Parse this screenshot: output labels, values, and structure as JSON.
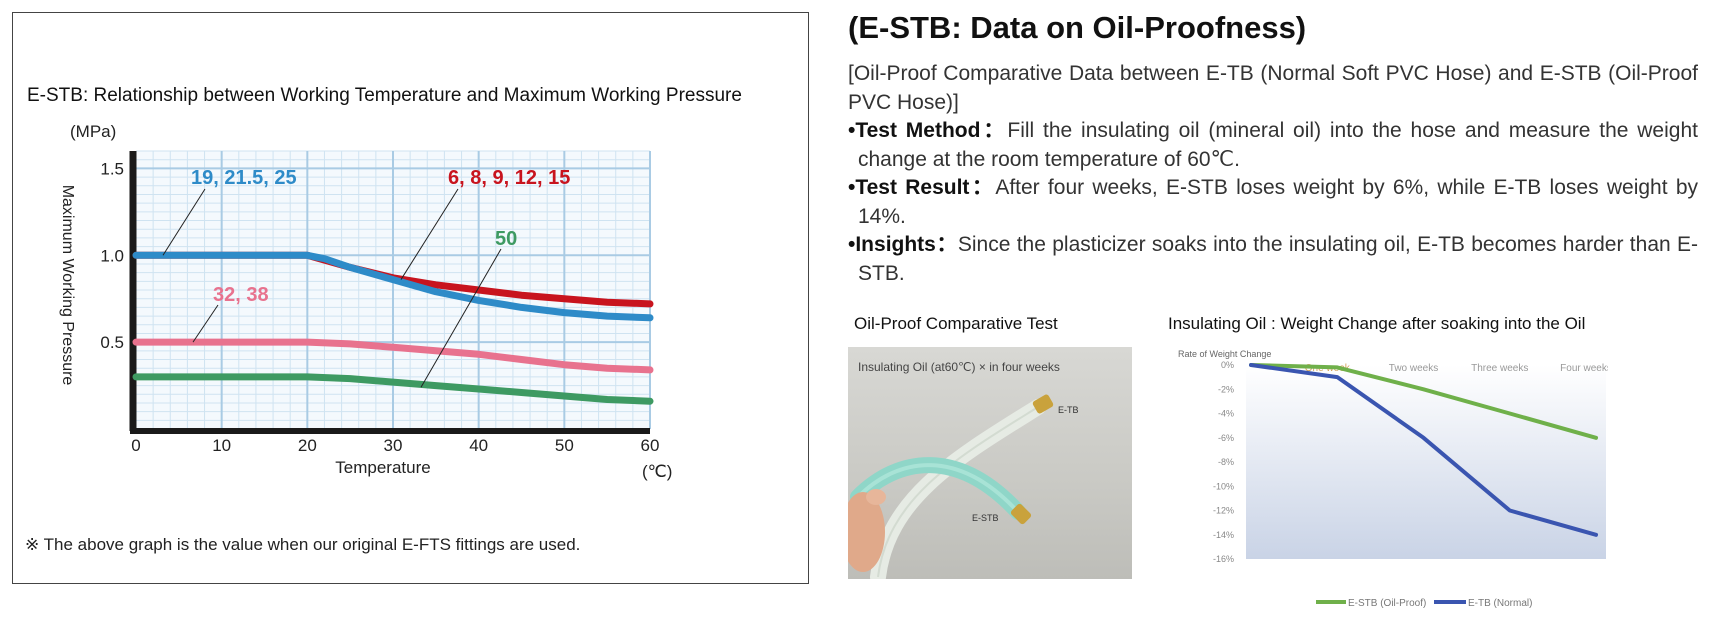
{
  "left_panel": {
    "title": "E-STB: Relationship between Working Temperature and Maximum Working Pressure",
    "footnote": "※ The above graph is the value when our original E-FTS fittings are used."
  },
  "right_panel": {
    "heading": "(E-STB: Data on Oil-Proofness)",
    "intro": "[Oil-Proof Comparative Data between E-TB (Normal Soft PVC Hose) and E-STB (Oil-Proof PVC Hose)]",
    "bullets": [
      {
        "label": "•Test Method：",
        "text": "Fill the insulating oil (mineral oil) into the hose and measure the weight change at the room temperature of 60℃."
      },
      {
        "label": "•Test Result：",
        "text": "After four weeks, E-STB loses weight by 6%, while E-TB loses weight by 14%."
      },
      {
        "label": "•Insights：",
        "text": "Since the plasticizer soaks into the insulating oil, E-TB becomes harder than E-STB."
      }
    ],
    "photo_title": "Oil-Proof Comparative Test",
    "photo_caption": "Insulating Oil (at60℃) × in four weeks",
    "photo_label_etb": "E-TB",
    "photo_label_estb": "E-STB",
    "weight_chart_title": "Insulating Oil : Weight Change after soaking into the Oil"
  },
  "chart_data": [
    {
      "type": "line",
      "title": "E-STB: Relationship between Working Temperature and Maximum Working Pressure",
      "xlabel": "Temperature",
      "x_unit": "(℃)",
      "ylabel": "Maximum Working Pressure",
      "y_unit": "(MPa)",
      "xlim": [
        0,
        60
      ],
      "ylim": [
        0,
        1.6
      ],
      "x_ticks": [
        "0",
        "10",
        "20",
        "30",
        "40",
        "50",
        "60"
      ],
      "y_ticks": [
        {
          "value": 0.5,
          "label": "0.5"
        },
        {
          "value": 1.0,
          "label": "1.0"
        },
        {
          "value": 1.5,
          "label": "1.5"
        }
      ],
      "grid": true,
      "series": [
        {
          "name": "6, 8, 9, 12, 15",
          "color": "#c8141e",
          "points": [
            [
              0,
              1.0
            ],
            [
              20,
              1.0
            ],
            [
              25,
              0.93
            ],
            [
              30,
              0.87
            ],
            [
              35,
              0.83
            ],
            [
              40,
              0.8
            ],
            [
              45,
              0.77
            ],
            [
              50,
              0.75
            ],
            [
              55,
              0.73
            ],
            [
              60,
              0.72
            ]
          ]
        },
        {
          "name": "19, 21.5, 25",
          "color": "#2e8bc8",
          "points": [
            [
              0,
              1.0
            ],
            [
              20,
              1.0
            ],
            [
              22,
              0.98
            ],
            [
              25,
              0.93
            ],
            [
              30,
              0.86
            ],
            [
              35,
              0.79
            ],
            [
              40,
              0.74
            ],
            [
              45,
              0.7
            ],
            [
              50,
              0.67
            ],
            [
              55,
              0.65
            ],
            [
              60,
              0.64
            ]
          ]
        },
        {
          "name": "32, 38",
          "color": "#e8728e",
          "points": [
            [
              0,
              0.5
            ],
            [
              20,
              0.5
            ],
            [
              25,
              0.49
            ],
            [
              30,
              0.47
            ],
            [
              35,
              0.45
            ],
            [
              40,
              0.43
            ],
            [
              45,
              0.4
            ],
            [
              50,
              0.37
            ],
            [
              55,
              0.35
            ],
            [
              60,
              0.34
            ]
          ]
        },
        {
          "name": "50",
          "color": "#3e9a62",
          "points": [
            [
              0,
              0.3
            ],
            [
              20,
              0.3
            ],
            [
              25,
              0.29
            ],
            [
              30,
              0.27
            ],
            [
              35,
              0.25
            ],
            [
              40,
              0.23
            ],
            [
              45,
              0.21
            ],
            [
              50,
              0.19
            ],
            [
              55,
              0.17
            ],
            [
              60,
              0.16
            ]
          ]
        }
      ]
    },
    {
      "type": "line",
      "title": "Insulating Oil : Weight Change after soaking into the Oil",
      "ylabel": "Rate of Weight Change",
      "categories": [
        "One week",
        "Two weeks",
        "Three weeks",
        "Four weeks"
      ],
      "y_ticks": [
        "0%",
        "-2%",
        "-4%",
        "-6%",
        "-8%",
        "-10%",
        "-12%",
        "-14%",
        "-16%"
      ],
      "ylim": [
        -16,
        0
      ],
      "series": [
        {
          "name": "E-STB (Oil-Proof)",
          "color": "#6fb04a",
          "points": [
            [
              0,
              0
            ],
            [
              1,
              -0.2
            ],
            [
              2,
              -2
            ],
            [
              3,
              -4
            ],
            [
              4,
              -6
            ]
          ]
        },
        {
          "name": "E-TB (Normal)",
          "color": "#3a55b0",
          "points": [
            [
              0,
              0
            ],
            [
              1,
              -1
            ],
            [
              2,
              -6
            ],
            [
              3,
              -12
            ],
            [
              4,
              -14
            ]
          ]
        }
      ]
    }
  ]
}
